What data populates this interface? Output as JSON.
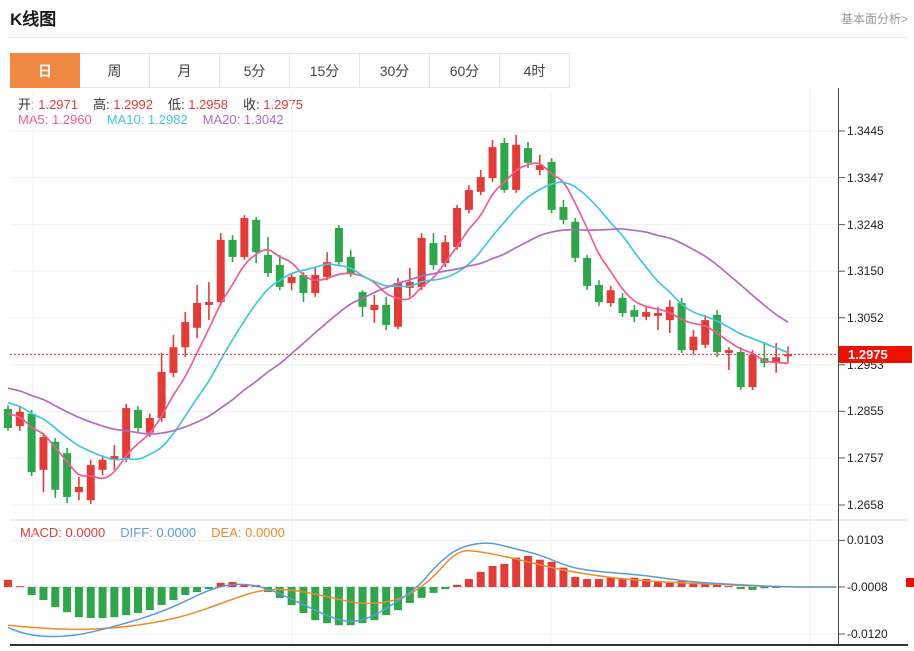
{
  "header": {
    "title": "K线图",
    "link_label": "基本面分析>"
  },
  "tabs": {
    "active_index": 0,
    "items": [
      {
        "label": "日",
        "name": "day"
      },
      {
        "label": "周",
        "name": "week"
      },
      {
        "label": "月",
        "name": "month"
      },
      {
        "label": "5分",
        "name": "5min"
      },
      {
        "label": "15分",
        "name": "15min"
      },
      {
        "label": "30分",
        "name": "30min"
      },
      {
        "label": "60分",
        "name": "60min"
      },
      {
        "label": "4时",
        "name": "4hour"
      }
    ]
  },
  "ohlc_legend": [
    {
      "label": "开:",
      "value": "1.2971"
    },
    {
      "label": "高:",
      "value": "1.2992"
    },
    {
      "label": "低:",
      "value": "1.2958"
    },
    {
      "label": "收:",
      "value": "1.2975"
    }
  ],
  "ma_legend": [
    {
      "label": "MA5:",
      "value": "1.2960",
      "color": "#ee5c96"
    },
    {
      "label": "MA10:",
      "value": "1.2982",
      "color": "#44c7de"
    },
    {
      "label": "MA20:",
      "value": "1.3042",
      "color": "#b06cc4"
    }
  ],
  "macd_legend": [
    {
      "label": "MACD:",
      "value": "0.0000",
      "color": "#e23c39"
    },
    {
      "label": "DIFF:",
      "value": "0.0000",
      "color": "#5a9bd8"
    },
    {
      "label": "DEA:",
      "value": "0.0000",
      "color": "#f08a2a"
    }
  ],
  "axis": {
    "price_tick_labels": [
      "1.3445",
      "1.3347",
      "1.3248",
      "1.3150",
      "1.3052",
      "1.2953",
      "1.2855",
      "1.2757",
      "1.2658"
    ],
    "macd_tick_labels": [
      "0.0103",
      "-0.0008",
      "-0.0120"
    ],
    "last_price": "1.2975"
  },
  "colors": {
    "up": "#e23c39",
    "down": "#2fa64b",
    "ma5": "#ee5c96",
    "ma10": "#44c7de",
    "ma20": "#b06cc4",
    "diff": "#5a9bd8",
    "dea": "#f08a2a",
    "badge": "#ee1100",
    "dotted": "#e83030",
    "grid": "#f1f1f4",
    "axis_line": "#444",
    "tab_active": "#ef8843"
  },
  "chart_data": {
    "type": "candlestick",
    "title": "K线图",
    "legend_position": "top-left",
    "grid": true,
    "price_axis": {
      "min": 1.2658,
      "max": 1.3445,
      "ticks": [
        1.3445,
        1.3347,
        1.3248,
        1.315,
        1.3052,
        1.2953,
        1.2855,
        1.2757,
        1.2658
      ]
    },
    "last_price": 1.2975,
    "ohlc_display": {
      "open": 1.2971,
      "high": 1.2992,
      "low": 1.2958,
      "close": 1.2975
    },
    "ma_display": {
      "MA5": 1.296,
      "MA10": 1.2982,
      "MA20": 1.3042
    },
    "ma_periods": [
      5,
      10,
      20
    ],
    "ma_seed_closes": [
      1.295,
      1.2945,
      1.2952,
      1.296,
      1.294,
      1.293,
      1.2935,
      1.292,
      1.291,
      1.29,
      1.2915,
      1.2905,
      1.2895,
      1.289,
      1.288,
      1.287,
      1.2862,
      1.285,
      1.2845
    ],
    "candles_format": [
      "open",
      "high",
      "low",
      "close"
    ],
    "candles": [
      [
        1.286,
        1.2868,
        1.2814,
        1.282
      ],
      [
        1.2824,
        1.2864,
        1.2814,
        1.2854
      ],
      [
        1.285,
        1.2858,
        1.2719,
        1.2727
      ],
      [
        1.2732,
        1.281,
        1.2685,
        1.2801
      ],
      [
        1.2791,
        1.2799,
        1.2673,
        1.269
      ],
      [
        1.2767,
        1.2778,
        1.2662,
        1.2675
      ],
      [
        1.2685,
        1.2717,
        1.2668,
        1.2696
      ],
      [
        1.2668,
        1.2753,
        1.266,
        1.2742
      ],
      [
        1.2732,
        1.2763,
        1.2721,
        1.2753
      ],
      [
        1.2755,
        1.2784,
        1.2732,
        1.2761
      ],
      [
        1.2757,
        1.2871,
        1.2748,
        1.2862
      ],
      [
        1.2858,
        1.2866,
        1.2812,
        1.282
      ],
      [
        1.281,
        1.285,
        1.2801,
        1.2841
      ],
      [
        1.2841,
        1.2978,
        1.2833,
        1.2938
      ],
      [
        1.2936,
        1.3016,
        1.2927,
        1.299
      ],
      [
        1.299,
        1.3064,
        1.2969,
        1.3043
      ],
      [
        1.3031,
        1.3121,
        1.3009,
        1.3083
      ],
      [
        1.3079,
        1.3127,
        1.3047,
        1.3085
      ],
      [
        1.3085,
        1.323,
        1.3077,
        1.3216
      ],
      [
        1.3216,
        1.3226,
        1.3169,
        1.318
      ],
      [
        1.318,
        1.3268,
        1.3174,
        1.3262
      ],
      [
        1.3258,
        1.3264,
        1.3167,
        1.319
      ],
      [
        1.3184,
        1.3222,
        1.3138,
        1.3146
      ],
      [
        1.3163,
        1.3184,
        1.311,
        1.3117
      ],
      [
        1.3125,
        1.3146,
        1.311,
        1.3138
      ],
      [
        1.3142,
        1.3148,
        1.3085,
        1.3104
      ],
      [
        1.3104,
        1.3159,
        1.3096,
        1.3142
      ],
      [
        1.3138,
        1.319,
        1.3131,
        1.3169
      ],
      [
        1.3241,
        1.3247,
        1.3161,
        1.3169
      ],
      [
        1.318,
        1.3195,
        1.3138,
        1.3146
      ],
      [
        1.3106,
        1.311,
        1.3054,
        1.3075
      ],
      [
        1.3068,
        1.31,
        1.3041,
        1.3079
      ],
      [
        1.3079,
        1.3096,
        1.3026,
        1.3037
      ],
      [
        1.3033,
        1.3136,
        1.3028,
        1.3125
      ],
      [
        1.3115,
        1.3157,
        1.3096,
        1.3127
      ],
      [
        1.3117,
        1.323,
        1.311,
        1.322
      ],
      [
        1.3209,
        1.323,
        1.3153,
        1.3163
      ],
      [
        1.3167,
        1.3226,
        1.3159,
        1.3211
      ],
      [
        1.3201,
        1.3289,
        1.3195,
        1.3283
      ],
      [
        1.3279,
        1.3331,
        1.3272,
        1.3321
      ],
      [
        1.3317,
        1.3363,
        1.331,
        1.3348
      ],
      [
        1.3346,
        1.3426,
        1.3338,
        1.3411
      ],
      [
        1.342,
        1.343,
        1.3315,
        1.3321
      ],
      [
        1.3321,
        1.3437,
        1.3315,
        1.3416
      ],
      [
        1.3409,
        1.3422,
        1.3367,
        1.3378
      ],
      [
        1.3363,
        1.3395,
        1.3352,
        1.3373
      ],
      [
        1.338,
        1.3388,
        1.3272,
        1.3279
      ],
      [
        1.3285,
        1.33,
        1.3249,
        1.3258
      ],
      [
        1.3254,
        1.3262,
        1.3169,
        1.3178
      ],
      [
        1.3178,
        1.3184,
        1.311,
        1.3119
      ],
      [
        1.3121,
        1.3131,
        1.3077,
        1.3085
      ],
      [
        1.3083,
        1.3119,
        1.3075,
        1.311
      ],
      [
        1.3094,
        1.3104,
        1.3054,
        1.3062
      ],
      [
        1.3068,
        1.3079,
        1.3043,
        1.3054
      ],
      [
        1.3054,
        1.3075,
        1.3047,
        1.3064
      ],
      [
        1.3056,
        1.3075,
        1.3026,
        1.3062
      ],
      [
        1.3047,
        1.3089,
        1.302,
        1.3075
      ],
      [
        1.3083,
        1.3094,
        1.2978,
        1.2984
      ],
      [
        1.2984,
        1.3026,
        1.2974,
        1.3012
      ],
      [
        1.2995,
        1.3058,
        1.2988,
        1.3047
      ],
      [
        1.3058,
        1.3068,
        1.2969,
        1.298
      ],
      [
        1.2978,
        1.299,
        1.2942,
        1.2984
      ],
      [
        1.298,
        1.299,
        1.29,
        1.2906
      ],
      [
        1.2906,
        1.2984,
        1.29,
        1.2974
      ],
      [
        1.2967,
        1.3001,
        1.2948,
        1.2957
      ],
      [
        1.2959,
        1.2999,
        1.2936,
        1.2969
      ],
      [
        1.2971,
        1.2992,
        1.2958,
        1.2975
      ]
    ],
    "macd": {
      "baseline": -0.0008,
      "axis_ticks": [
        0.0103,
        -0.0008,
        -0.012
      ],
      "hist": [
        0.0009,
        -0.0006,
        -0.0027,
        -0.0039,
        -0.0056,
        -0.0068,
        -0.008,
        -0.0082,
        -0.0082,
        -0.008,
        -0.0075,
        -0.007,
        -0.0063,
        -0.0051,
        -0.0039,
        -0.0027,
        -0.002,
        -0.0013,
        0.0002,
        0.0004,
        -0.0001,
        -0.0003,
        -0.002,
        -0.0034,
        -0.0051,
        -0.007,
        -0.0087,
        -0.0094,
        -0.0099,
        -0.0099,
        -0.0094,
        -0.0087,
        -0.0075,
        -0.0063,
        -0.0046,
        -0.0034,
        -0.0022,
        -0.0013,
        -0.0003,
        0.0011,
        0.0028,
        0.0042,
        0.0047,
        0.0062,
        0.0066,
        0.0057,
        0.0052,
        0.0038,
        0.0016,
        0.0011,
        0.0011,
        0.0014,
        0.0011,
        0.0014,
        0.0011,
        0.0006,
        0.0002,
        0.0006,
        0.0002,
        -0.0001,
        -0.0003,
        -0.0006,
        -0.0013,
        -0.0015,
        -0.0011,
        -0.0009,
        -0.0007
      ],
      "diff_line": [
        [
          0,
          -0.0104
        ],
        [
          1.3,
          -0.0123
        ],
        [
          5.2,
          -0.0128
        ],
        [
          9.5,
          -0.0099
        ],
        [
          13.5,
          -0.0063
        ],
        [
          17.3,
          -0.001
        ],
        [
          19.6,
          0.0001
        ],
        [
          21.9,
          -0.001
        ],
        [
          24.7,
          -0.0046
        ],
        [
          27.8,
          -0.0087
        ],
        [
          29.8,
          -0.0092
        ],
        [
          32.3,
          -0.0056
        ],
        [
          34.9,
          -0.0003
        ],
        [
          36.1,
          0.004
        ],
        [
          38,
          0.0085
        ],
        [
          40.5,
          0.01
        ],
        [
          42.5,
          0.0086
        ],
        [
          45,
          0.0069
        ],
        [
          47.6,
          0.0038
        ],
        [
          50.1,
          0.0028
        ],
        [
          53.5,
          0.0021
        ],
        [
          57.7,
          0.0004
        ],
        [
          61.9,
          -0.0003
        ],
        [
          66.2,
          -0.0008
        ],
        [
          70.1,
          -0.0008
        ]
      ],
      "dea_line": [
        [
          0,
          -0.0099
        ],
        [
          4.4,
          -0.0111
        ],
        [
          9.5,
          -0.0106
        ],
        [
          14.6,
          -0.0082
        ],
        [
          18.8,
          -0.0039
        ],
        [
          21.3,
          -0.0015
        ],
        [
          23.9,
          -0.0013
        ],
        [
          27.2,
          -0.0032
        ],
        [
          30.2,
          -0.0051
        ],
        [
          33.2,
          -0.0039
        ],
        [
          35.7,
          0.0005
        ],
        [
          38,
          0.008
        ],
        [
          39.9,
          0.0077
        ],
        [
          43.3,
          0.0057
        ],
        [
          46.7,
          0.0033
        ],
        [
          50.9,
          0.0014
        ],
        [
          55.2,
          0.0004
        ],
        [
          59.4,
          -0.0001
        ],
        [
          63.6,
          -0.0006
        ],
        [
          67,
          -0.0008
        ],
        [
          70.1,
          -0.0008
        ]
      ]
    }
  }
}
